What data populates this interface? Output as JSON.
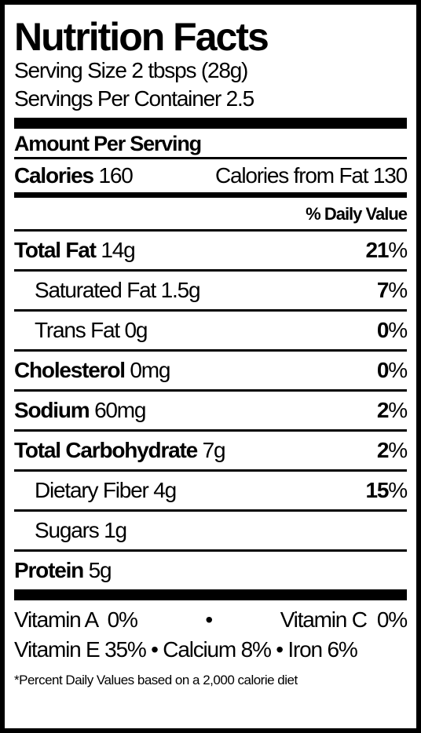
{
  "title": "Nutrition Facts",
  "serving_size_label": "Serving Size 2 tbsps (28g)",
  "servings_per_container_label": "Servings Per Container 2.5",
  "amount_per_serving": "Amount Per Serving",
  "calories": {
    "label": "Calories",
    "value": "160",
    "from_fat": "Calories from Fat 130"
  },
  "daily_value_header": "% Daily Value",
  "nutrients": {
    "total_fat": {
      "label": "Total Fat",
      "amount": "14g",
      "pct_num": "21",
      "pct_sign": "%"
    },
    "saturated_fat": {
      "label": "Saturated Fat 1.5g",
      "pct_num": "7",
      "pct_sign": "%"
    },
    "trans_fat": {
      "label": "Trans Fat 0g",
      "pct_num": "0",
      "pct_sign": "%"
    },
    "cholesterol": {
      "label": "Cholesterol",
      "amount": "0mg",
      "pct_num": "0",
      "pct_sign": "%"
    },
    "sodium": {
      "label": "Sodium",
      "amount": "60mg",
      "pct_num": "2",
      "pct_sign": "%"
    },
    "total_carbohydrate": {
      "label": "Total Carbohydrate",
      "amount": "7g",
      "pct_num": "2",
      "pct_sign": "%"
    },
    "dietary_fiber": {
      "label": "Dietary Fiber 4g",
      "pct_num": "15",
      "pct_sign": "%"
    },
    "sugars": {
      "label": "Sugars 1g"
    },
    "protein": {
      "label": "Protein",
      "amount": "5g"
    }
  },
  "vitamins": {
    "row1_left": "Vitamin A  0%",
    "row1_dot": "•",
    "row1_right": "Vitamin C  0%",
    "row2": "Vitamin E 35% • Calcium 8% • Iron 6%"
  },
  "footnote": "*Percent Daily Values based on a 2,000 calorie diet"
}
